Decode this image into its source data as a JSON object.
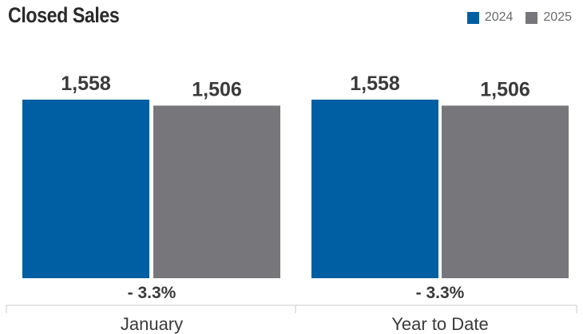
{
  "colors": {
    "series_2024": "#005ea2",
    "series_2025": "#77777b",
    "axis": "#cccccc"
  },
  "chart_data": {
    "type": "bar",
    "title": "Closed Sales",
    "categories": [
      "January",
      "Year to Date"
    ],
    "series": [
      {
        "name": "2024",
        "values": [
          1558,
          1558
        ],
        "labels": [
          "1,558",
          "1,558"
        ]
      },
      {
        "name": "2025",
        "values": [
          1506,
          1506
        ],
        "labels": [
          "1,506",
          "1,506"
        ]
      }
    ],
    "changes": [
      "- 3.3%",
      "- 3.3%"
    ],
    "legend_position": "top-right"
  }
}
